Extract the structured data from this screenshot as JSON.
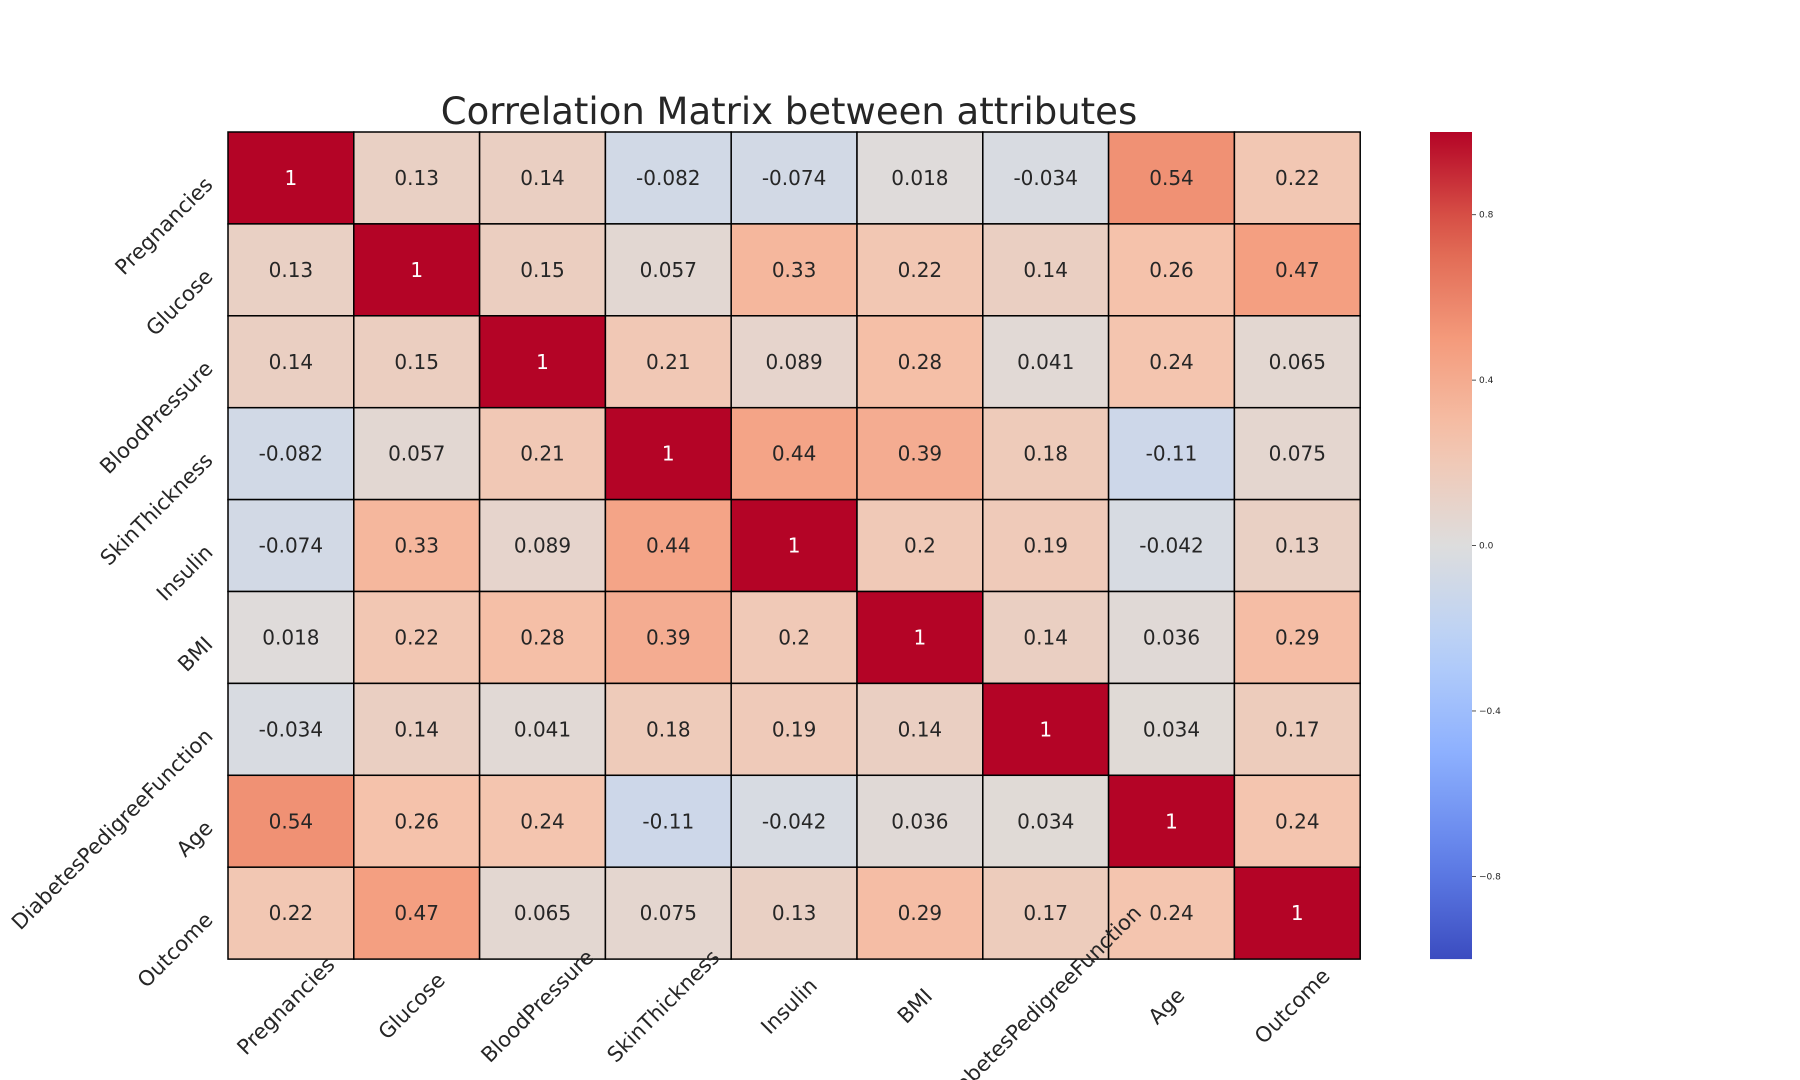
{
  "chart_data": {
    "type": "heatmap",
    "title": "Correlation Matrix between attributes",
    "colormap": "coolwarm",
    "vmin": -1,
    "vmax": 1,
    "annotated": true,
    "x_labels": [
      "Pregnancies",
      "Glucose",
      "BloodPressure",
      "SkinThickness",
      "Insulin",
      "BMI",
      "DiabetesPedigreeFunction",
      "Age",
      "Outcome"
    ],
    "y_labels": [
      "Pregnancies",
      "Glucose",
      "BloodPressure",
      "SkinThickness",
      "Insulin",
      "BMI",
      "DiabetesPedigreeFunction",
      "Age",
      "Outcome"
    ],
    "values": [
      [
        1,
        0.13,
        0.14,
        -0.082,
        -0.074,
        0.018,
        -0.034,
        0.54,
        0.22
      ],
      [
        0.13,
        1,
        0.15,
        0.057,
        0.33,
        0.22,
        0.14,
        0.26,
        0.47
      ],
      [
        0.14,
        0.15,
        1,
        0.21,
        0.089,
        0.28,
        0.041,
        0.24,
        0.065
      ],
      [
        -0.082,
        0.057,
        0.21,
        1,
        0.44,
        0.39,
        0.18,
        -0.11,
        0.075
      ],
      [
        -0.074,
        0.33,
        0.089,
        0.44,
        1,
        0.2,
        0.19,
        -0.042,
        0.13
      ],
      [
        0.018,
        0.22,
        0.28,
        0.39,
        0.2,
        1,
        0.14,
        0.036,
        0.29
      ],
      [
        -0.034,
        0.14,
        0.041,
        0.18,
        0.19,
        0.14,
        1,
        0.034,
        0.17
      ],
      [
        0.54,
        0.26,
        0.24,
        -0.11,
        -0.042,
        0.036,
        0.034,
        1,
        0.24
      ],
      [
        0.22,
        0.47,
        0.065,
        0.075,
        0.13,
        0.29,
        0.17,
        0.24,
        1
      ]
    ],
    "colorbar": {
      "ticks": [
        0.8,
        0.4,
        0.0,
        -0.4,
        -0.8
      ],
      "tick_labels": [
        "0.8",
        "0.4",
        "0.0",
        "−0.4",
        "−0.8"
      ]
    },
    "colors": {
      "cell_border": "#000000",
      "text_dark": "#262626",
      "text_light": "#ffffff"
    }
  }
}
